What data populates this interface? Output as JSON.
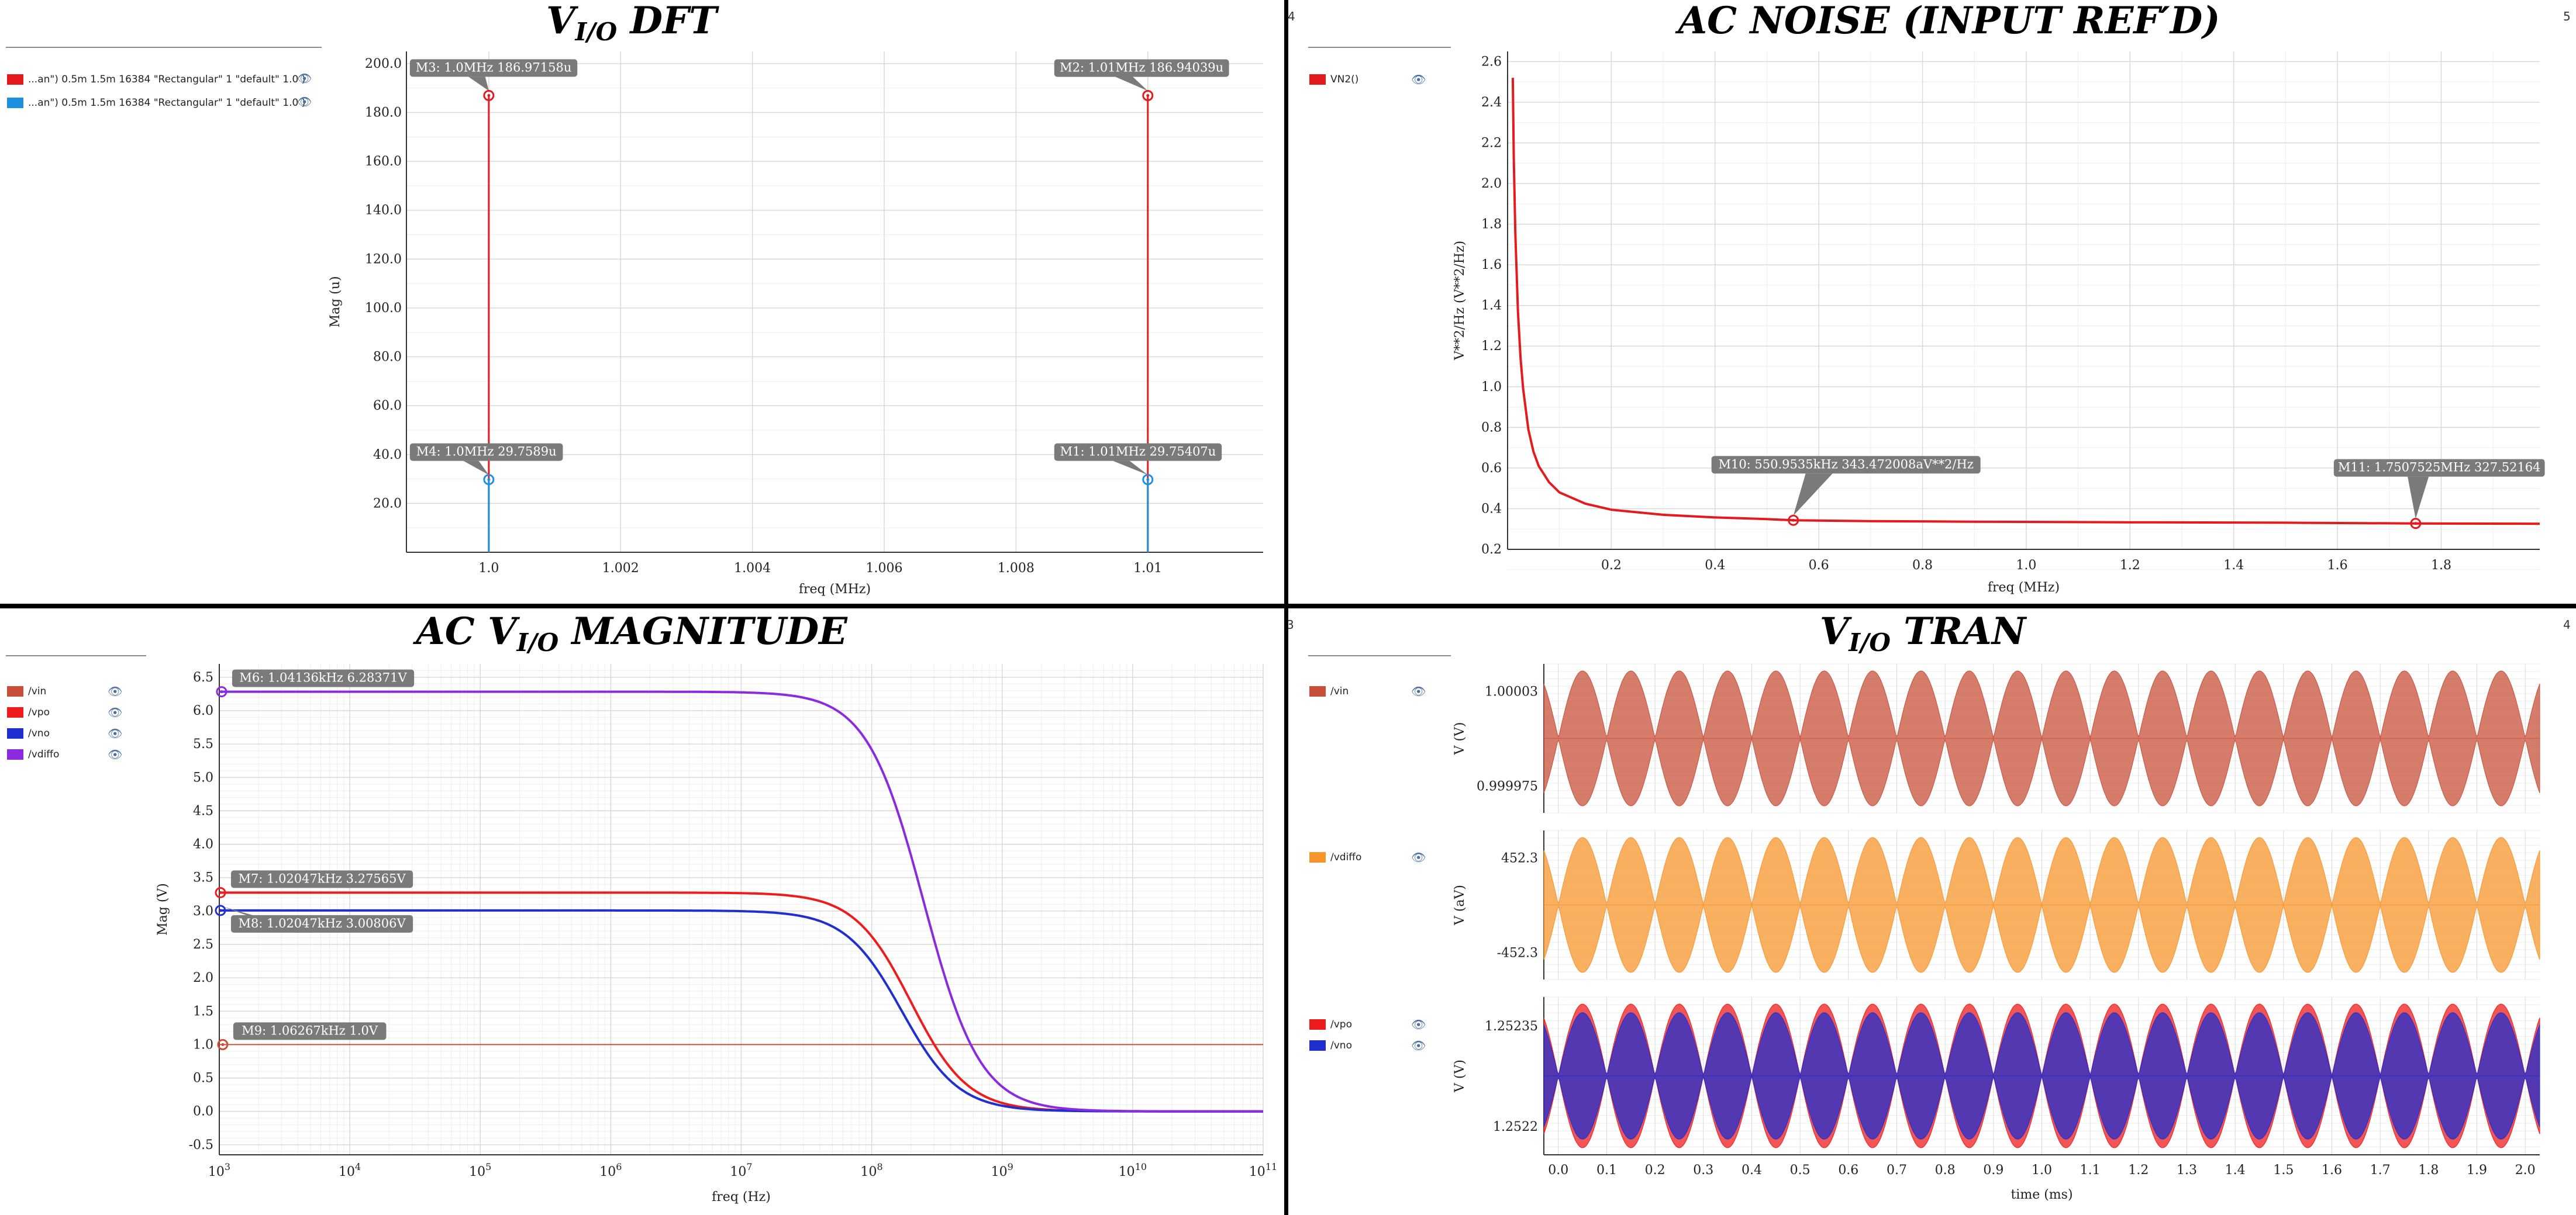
{
  "panels": {
    "dft": {
      "title_pre": "V",
      "title_sub": "I/O",
      "title_post": " DFT",
      "legend": [
        {
          "label": "...an\") 0.5m 1.5m 16384 \"Rectangular\" 1 \"default\" 1.0 )",
          "color": "#e41a1c",
          "icon": "eye-icon"
        },
        {
          "label": "...an\") 0.5m 1.5m 16384 \"Rectangular\" 1 \"default\" 1.0 )",
          "color": "#1f8fe0",
          "icon": "eye-icon"
        }
      ]
    },
    "noise": {
      "title": "AC NOISE (INPUT REF′D)",
      "corner_left": "4",
      "corner_right": "5",
      "legend": [
        {
          "label": "VN2()",
          "color": "#e41a1c",
          "icon": "eye-icon"
        }
      ]
    },
    "ac": {
      "title_pre": "AC V",
      "title_sub": "I/O",
      "title_post": " MAGNITUDE",
      "legend": [
        {
          "label": "/vin",
          "color": "#c8503a",
          "icon": "eye-icon"
        },
        {
          "label": "/vpo",
          "color": "#ee1c1c",
          "icon": "eye-icon"
        },
        {
          "label": "/vno",
          "color": "#1f2fd0",
          "icon": "eye-icon"
        },
        {
          "label": "/vdiffo",
          "color": "#8a2be2",
          "icon": "eye-icon"
        }
      ]
    },
    "tran": {
      "title_pre": "V",
      "title_sub": "I/O",
      "title_post": " TRAN",
      "corner_left": "3",
      "corner_right": "4",
      "legend_vin": [
        {
          "label": "/vin",
          "color": "#c8503a",
          "icon": "eye-icon"
        }
      ],
      "legend_vdiffo": [
        {
          "label": "/vdiffo",
          "color": "#f7952b",
          "icon": "eye-icon"
        }
      ],
      "legend_vpo_vno": [
        {
          "label": "/vpo",
          "color": "#ee1c1c",
          "icon": "eye-icon"
        },
        {
          "label": "/vno",
          "color": "#1f2fd0",
          "icon": "eye-icon"
        }
      ]
    }
  },
  "chart_data": [
    {
      "id": "dft",
      "type": "line",
      "xlabel": "freq (MHz)",
      "ylabel": "Mag (u)",
      "xlim": [
        0.99875,
        1.01175
      ],
      "ylim": [
        0,
        205
      ],
      "xticks": [
        1.0,
        1.002,
        1.004,
        1.006,
        1.008,
        1.01
      ],
      "xtick_labels": [
        "1.0",
        "1.002",
        "1.004",
        "1.006",
        "1.008",
        "1.01"
      ],
      "yticks": [
        20,
        40,
        60,
        80,
        100,
        120,
        140,
        160,
        180,
        200
      ],
      "ytick_labels": [
        "20.0",
        "40.0",
        "60.0",
        "80.0",
        "100.0",
        "120.0",
        "140.0",
        "160.0",
        "180.0",
        "200.0"
      ],
      "grid": true,
      "series": [
        {
          "color": "#e41a1c",
          "points": [
            [
              1.0,
              0
            ],
            [
              1.0,
              186.97158
            ],
            [
              1.01,
              0
            ],
            [
              1.01,
              186.94039
            ]
          ]
        },
        {
          "color": "#1f8fe0",
          "points": [
            [
              1.0,
              0
            ],
            [
              1.0,
              29.7589
            ],
            [
              1.01,
              0
            ],
            [
              1.01,
              29.75407
            ]
          ]
        }
      ],
      "markers": [
        {
          "label": "M3: 1.0MHz 186.97158u",
          "x": 1.0,
          "y": 186.97158,
          "color": "#e41a1c"
        },
        {
          "label": "M2: 1.01MHz 186.94039u",
          "x": 1.01,
          "y": 186.94039,
          "color": "#e41a1c"
        },
        {
          "label": "M4: 1.0MHz 29.7589u",
          "x": 1.0,
          "y": 29.7589,
          "color": "#1f8fe0"
        },
        {
          "label": "M1: 1.01MHz 29.75407u",
          "x": 1.01,
          "y": 29.75407,
          "color": "#1f8fe0"
        }
      ]
    },
    {
      "id": "noise",
      "type": "line",
      "xlabel": "freq (MHz)",
      "ylabel": "V**2/Hz (V**2/Hz)",
      "xlim": [
        0.0,
        1.99
      ],
      "ylim": [
        0.2,
        2.65
      ],
      "xticks": [
        0.2,
        0.4,
        0.6,
        0.8,
        1.0,
        1.2,
        1.4,
        1.6,
        1.8
      ],
      "xtick_labels": [
        "0.2",
        "0.4",
        "0.6",
        "0.8",
        "1.0",
        "1.2",
        "1.4",
        "1.6",
        "1.8"
      ],
      "yticks": [
        0.2,
        0.4,
        0.6,
        0.8,
        1.0,
        1.2,
        1.4,
        1.6,
        1.8,
        2.0,
        2.2,
        2.4,
        2.6
      ],
      "ytick_labels": [
        "0.2",
        "0.4",
        "0.6",
        "0.8",
        "1.0",
        "1.2",
        "1.4",
        "1.6",
        "1.8",
        "2.0",
        "2.2",
        "2.4",
        "2.6"
      ],
      "grid": true,
      "series": [
        {
          "color": "#e41a1c",
          "points": [
            [
              0.01,
              2.52
            ],
            [
              0.012,
              2.12
            ],
            [
              0.015,
              1.75
            ],
            [
              0.02,
              1.37
            ],
            [
              0.025,
              1.14
            ],
            [
              0.03,
              0.99
            ],
            [
              0.04,
              0.79
            ],
            [
              0.05,
              0.68
            ],
            [
              0.06,
              0.61
            ],
            [
              0.08,
              0.53
            ],
            [
              0.1,
              0.48
            ],
            [
              0.15,
              0.425
            ],
            [
              0.2,
              0.395
            ],
            [
              0.3,
              0.37
            ],
            [
              0.4,
              0.357
            ],
            [
              0.5,
              0.349
            ],
            [
              0.551,
              0.343
            ],
            [
              0.7,
              0.339
            ],
            [
              0.9,
              0.336
            ],
            [
              1.2,
              0.333
            ],
            [
              1.5,
              0.331
            ],
            [
              1.75,
              0.3275
            ],
            [
              1.99,
              0.326
            ]
          ]
        }
      ],
      "markers": [
        {
          "label": "M10: 550.9535kHz 343.472008aV**2/Hz",
          "x": 0.5509535,
          "y": 0.343,
          "color": "#e41a1c"
        },
        {
          "label": "M11: 1.7507525MHz 327.52164",
          "x": 1.7507525,
          "y": 0.3275,
          "color": "#e41a1c"
        }
      ]
    },
    {
      "id": "ac",
      "type": "line",
      "xscale": "log",
      "xlabel": "freq (Hz)",
      "ylabel": "Mag (V)",
      "xlim": [
        1000,
        100000000000
      ],
      "ylim": [
        -0.65,
        6.7
      ],
      "xticks": [
        1000,
        10000,
        100000,
        1000000,
        10000000,
        100000000,
        1000000000,
        10000000000,
        100000000000
      ],
      "xtick_exponents": [
        "3",
        "4",
        "5",
        "6",
        "7",
        "8",
        "9",
        "10",
        "11"
      ],
      "xtick_base": "10",
      "yticks": [
        -0.5,
        0.0,
        0.5,
        1.0,
        1.5,
        2.0,
        2.5,
        3.0,
        3.5,
        4.0,
        4.5,
        5.0,
        5.5,
        6.0,
        6.5
      ],
      "ytick_labels": [
        "-0.5",
        "0.0",
        "0.5",
        "1.0",
        "1.5",
        "2.0",
        "2.5",
        "3.0",
        "3.5",
        "4.0",
        "4.5",
        "5.0",
        "5.5",
        "6.0",
        "6.5"
      ],
      "grid": true,
      "series": [
        {
          "name": "/vin",
          "color": "#c8503a",
          "dc": 1.0,
          "fc": 0
        },
        {
          "name": "/vpo",
          "color": "#ee1c1c",
          "dc": 3.27565,
          "fc": 200000000
        },
        {
          "name": "/vno",
          "color": "#1f2fd0",
          "dc": 3.00806,
          "fc": 170000000
        },
        {
          "name": "/vdiffo",
          "color": "#8a2be2",
          "dc": 6.28371,
          "fc": 250000000
        }
      ],
      "markers": [
        {
          "label": "M6: 1.04136kHz 6.28371V",
          "x": 1041.36,
          "y": 6.28371,
          "color": "#8a2be2"
        },
        {
          "label": "M7: 1.02047kHz 3.27565V",
          "x": 1020.47,
          "y": 3.27565,
          "color": "#ee1c1c"
        },
        {
          "label": "M8: 1.02047kHz 3.00806V",
          "x": 1020.47,
          "y": 3.00806,
          "color": "#1f2fd0"
        },
        {
          "label": "M9: 1.06267kHz 1.0V",
          "x": 1062.67,
          "y": 1.0,
          "color": "#c8503a"
        }
      ]
    },
    {
      "id": "tran",
      "type": "line",
      "xlabel": "time (ms)",
      "xlim": [
        -0.03,
        2.03
      ],
      "xticks": [
        0.0,
        0.1,
        0.2,
        0.3,
        0.4,
        0.5,
        0.6,
        0.7,
        0.8,
        0.9,
        1.0,
        1.1,
        1.2,
        1.3,
        1.4,
        1.5,
        1.6,
        1.7,
        1.8,
        1.9,
        2.0
      ],
      "xtick_labels": [
        "0.0",
        "0.1",
        "0.2",
        "0.3",
        "0.4",
        "0.5",
        "0.6",
        "0.7",
        "0.8",
        "0.9",
        "1.0",
        "1.1",
        "1.2",
        "1.3",
        "1.4",
        "1.5",
        "1.6",
        "1.7",
        "1.8",
        "1.9",
        "2.0"
      ],
      "grid": true,
      "envelope_freq_khz": 10,
      "strips": [
        {
          "ylabel": "V (V)",
          "ytick_labels": [
            "1.00003",
            "0.999975"
          ],
          "series": [
            {
              "name": "/vin",
              "color": "#c8503a"
            }
          ]
        },
        {
          "ylabel": "V (aV)",
          "ytick_labels": [
            "452.3",
            "-452.3"
          ],
          "series": [
            {
              "name": "/vdiffo",
              "color": "#f7952b"
            }
          ]
        },
        {
          "ylabel": "V (V)",
          "ytick_labels": [
            "1.25235",
            "1.2522"
          ],
          "series": [
            {
              "name": "/vpo",
              "color": "#ee1c1c"
            },
            {
              "name": "/vno",
              "color": "#1f2fd0"
            }
          ]
        }
      ]
    }
  ]
}
